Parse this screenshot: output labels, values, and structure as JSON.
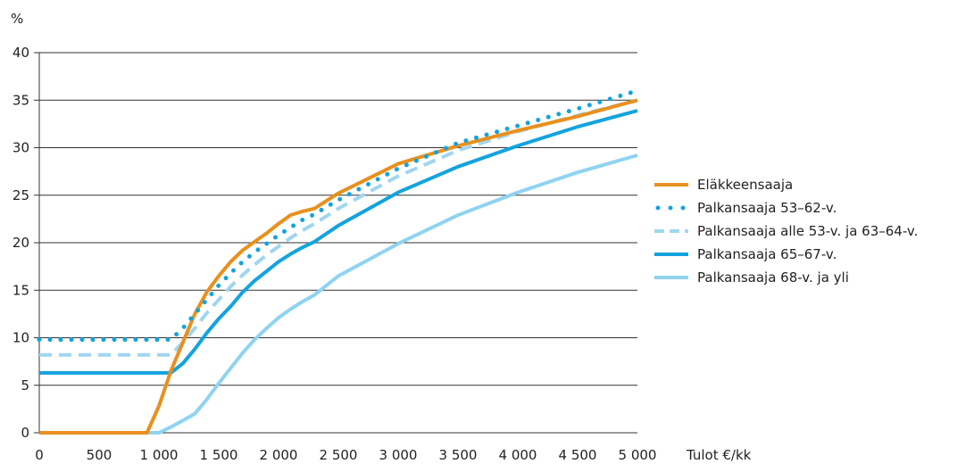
{
  "chart_data": {
    "type": "line",
    "title": "",
    "ylabel": "%",
    "xlabel": "Tulot €/kk",
    "xlim": [
      0,
      5000
    ],
    "ylim": [
      0,
      40
    ],
    "x_ticks": [
      0,
      500,
      1000,
      1500,
      2000,
      2500,
      3000,
      3500,
      4000,
      4500,
      5000
    ],
    "x_tick_labels": [
      "0",
      "500",
      "1 000",
      "1 500",
      "2 000",
      "2 500",
      "3 000",
      "3 500",
      "4 000",
      "4 500",
      "5 000"
    ],
    "y_ticks": [
      0,
      5,
      10,
      15,
      20,
      25,
      30,
      35,
      40
    ],
    "y_tick_labels": [
      "0",
      "5",
      "10",
      "15",
      "20",
      "25",
      "30",
      "35",
      "40"
    ],
    "grid": "horizontal",
    "legend_position": "right",
    "series": [
      {
        "name": "Eläkkeensaaja",
        "color": "#e8901e",
        "style": "solid",
        "points": [
          [
            0,
            0
          ],
          [
            900,
            0
          ],
          [
            1000,
            2.8
          ],
          [
            1100,
            6.5
          ],
          [
            1200,
            9.5
          ],
          [
            1300,
            12.5
          ],
          [
            1400,
            14.8
          ],
          [
            1500,
            16.5
          ],
          [
            1600,
            18.0
          ],
          [
            1700,
            19.2
          ],
          [
            1800,
            20.1
          ],
          [
            1900,
            21.0
          ],
          [
            2000,
            22.0
          ],
          [
            2100,
            22.9
          ],
          [
            2200,
            23.3
          ],
          [
            2300,
            23.6
          ],
          [
            2500,
            25.2
          ],
          [
            3000,
            28.3
          ],
          [
            3500,
            30.2
          ],
          [
            4000,
            31.8
          ],
          [
            4500,
            33.3
          ],
          [
            5000,
            35.0
          ]
        ]
      },
      {
        "name": "Palkansaaja 53–62-v.",
        "color": "#14a3de",
        "style": "dotted",
        "points": [
          [
            0,
            9.8
          ],
          [
            1100,
            9.8
          ],
          [
            1200,
            11.0
          ],
          [
            1300,
            12.5
          ],
          [
            1400,
            14.0
          ],
          [
            1500,
            15.5
          ],
          [
            1600,
            16.8
          ],
          [
            1700,
            18.0
          ],
          [
            1800,
            19.0
          ],
          [
            1900,
            19.9
          ],
          [
            2000,
            20.8
          ],
          [
            2100,
            21.6
          ],
          [
            2200,
            22.4
          ],
          [
            2300,
            23.0
          ],
          [
            2500,
            24.5
          ],
          [
            3000,
            27.8
          ],
          [
            3500,
            30.5
          ],
          [
            4000,
            32.3
          ],
          [
            4500,
            34.1
          ],
          [
            5000,
            36.0
          ]
        ]
      },
      {
        "name": "Palkansaaja alle 53-v. ja 63–64-v.",
        "color": "#9fd6f0",
        "style": "dashed",
        "points": [
          [
            0,
            8.2
          ],
          [
            1100,
            8.2
          ],
          [
            1200,
            9.5
          ],
          [
            1300,
            11.0
          ],
          [
            1400,
            12.6
          ],
          [
            1500,
            14.0
          ],
          [
            1600,
            15.4
          ],
          [
            1700,
            16.6
          ],
          [
            1800,
            17.7
          ],
          [
            1900,
            18.7
          ],
          [
            2000,
            19.6
          ],
          [
            2100,
            20.5
          ],
          [
            2200,
            21.3
          ],
          [
            2300,
            22.0
          ],
          [
            2500,
            23.6
          ],
          [
            3000,
            27.0
          ],
          [
            3500,
            29.7
          ],
          [
            4000,
            31.7
          ],
          [
            4500,
            33.4
          ],
          [
            5000,
            35.0
          ]
        ]
      },
      {
        "name": "Palkansaaja 65–67-v.",
        "color": "#14a3de",
        "style": "solid",
        "points": [
          [
            0,
            6.3
          ],
          [
            1100,
            6.3
          ],
          [
            1200,
            7.3
          ],
          [
            1300,
            8.8
          ],
          [
            1400,
            10.5
          ],
          [
            1500,
            12.0
          ],
          [
            1600,
            13.3
          ],
          [
            1700,
            14.8
          ],
          [
            1800,
            16.0
          ],
          [
            1900,
            17.0
          ],
          [
            2000,
            18.0
          ],
          [
            2100,
            18.8
          ],
          [
            2200,
            19.5
          ],
          [
            2300,
            20.1
          ],
          [
            2500,
            21.8
          ],
          [
            3000,
            25.3
          ],
          [
            3500,
            28.0
          ],
          [
            4000,
            30.2
          ],
          [
            4500,
            32.2
          ],
          [
            5000,
            33.9
          ]
        ]
      },
      {
        "name": "Palkansaaja 68-v. ja yli",
        "color": "#8fd3f1",
        "style": "solid",
        "points": [
          [
            0,
            0
          ],
          [
            1000,
            0
          ],
          [
            1100,
            0.6
          ],
          [
            1200,
            1.3
          ],
          [
            1300,
            2.0
          ],
          [
            1400,
            3.5
          ],
          [
            1500,
            5.2
          ],
          [
            1600,
            6.8
          ],
          [
            1700,
            8.4
          ],
          [
            1800,
            9.8
          ],
          [
            1900,
            11.0
          ],
          [
            2000,
            12.1
          ],
          [
            2100,
            13.0
          ],
          [
            2200,
            13.8
          ],
          [
            2300,
            14.5
          ],
          [
            2500,
            16.5
          ],
          [
            3000,
            19.9
          ],
          [
            3500,
            22.9
          ],
          [
            4000,
            25.3
          ],
          [
            4500,
            27.4
          ],
          [
            5000,
            29.2
          ]
        ]
      }
    ]
  }
}
